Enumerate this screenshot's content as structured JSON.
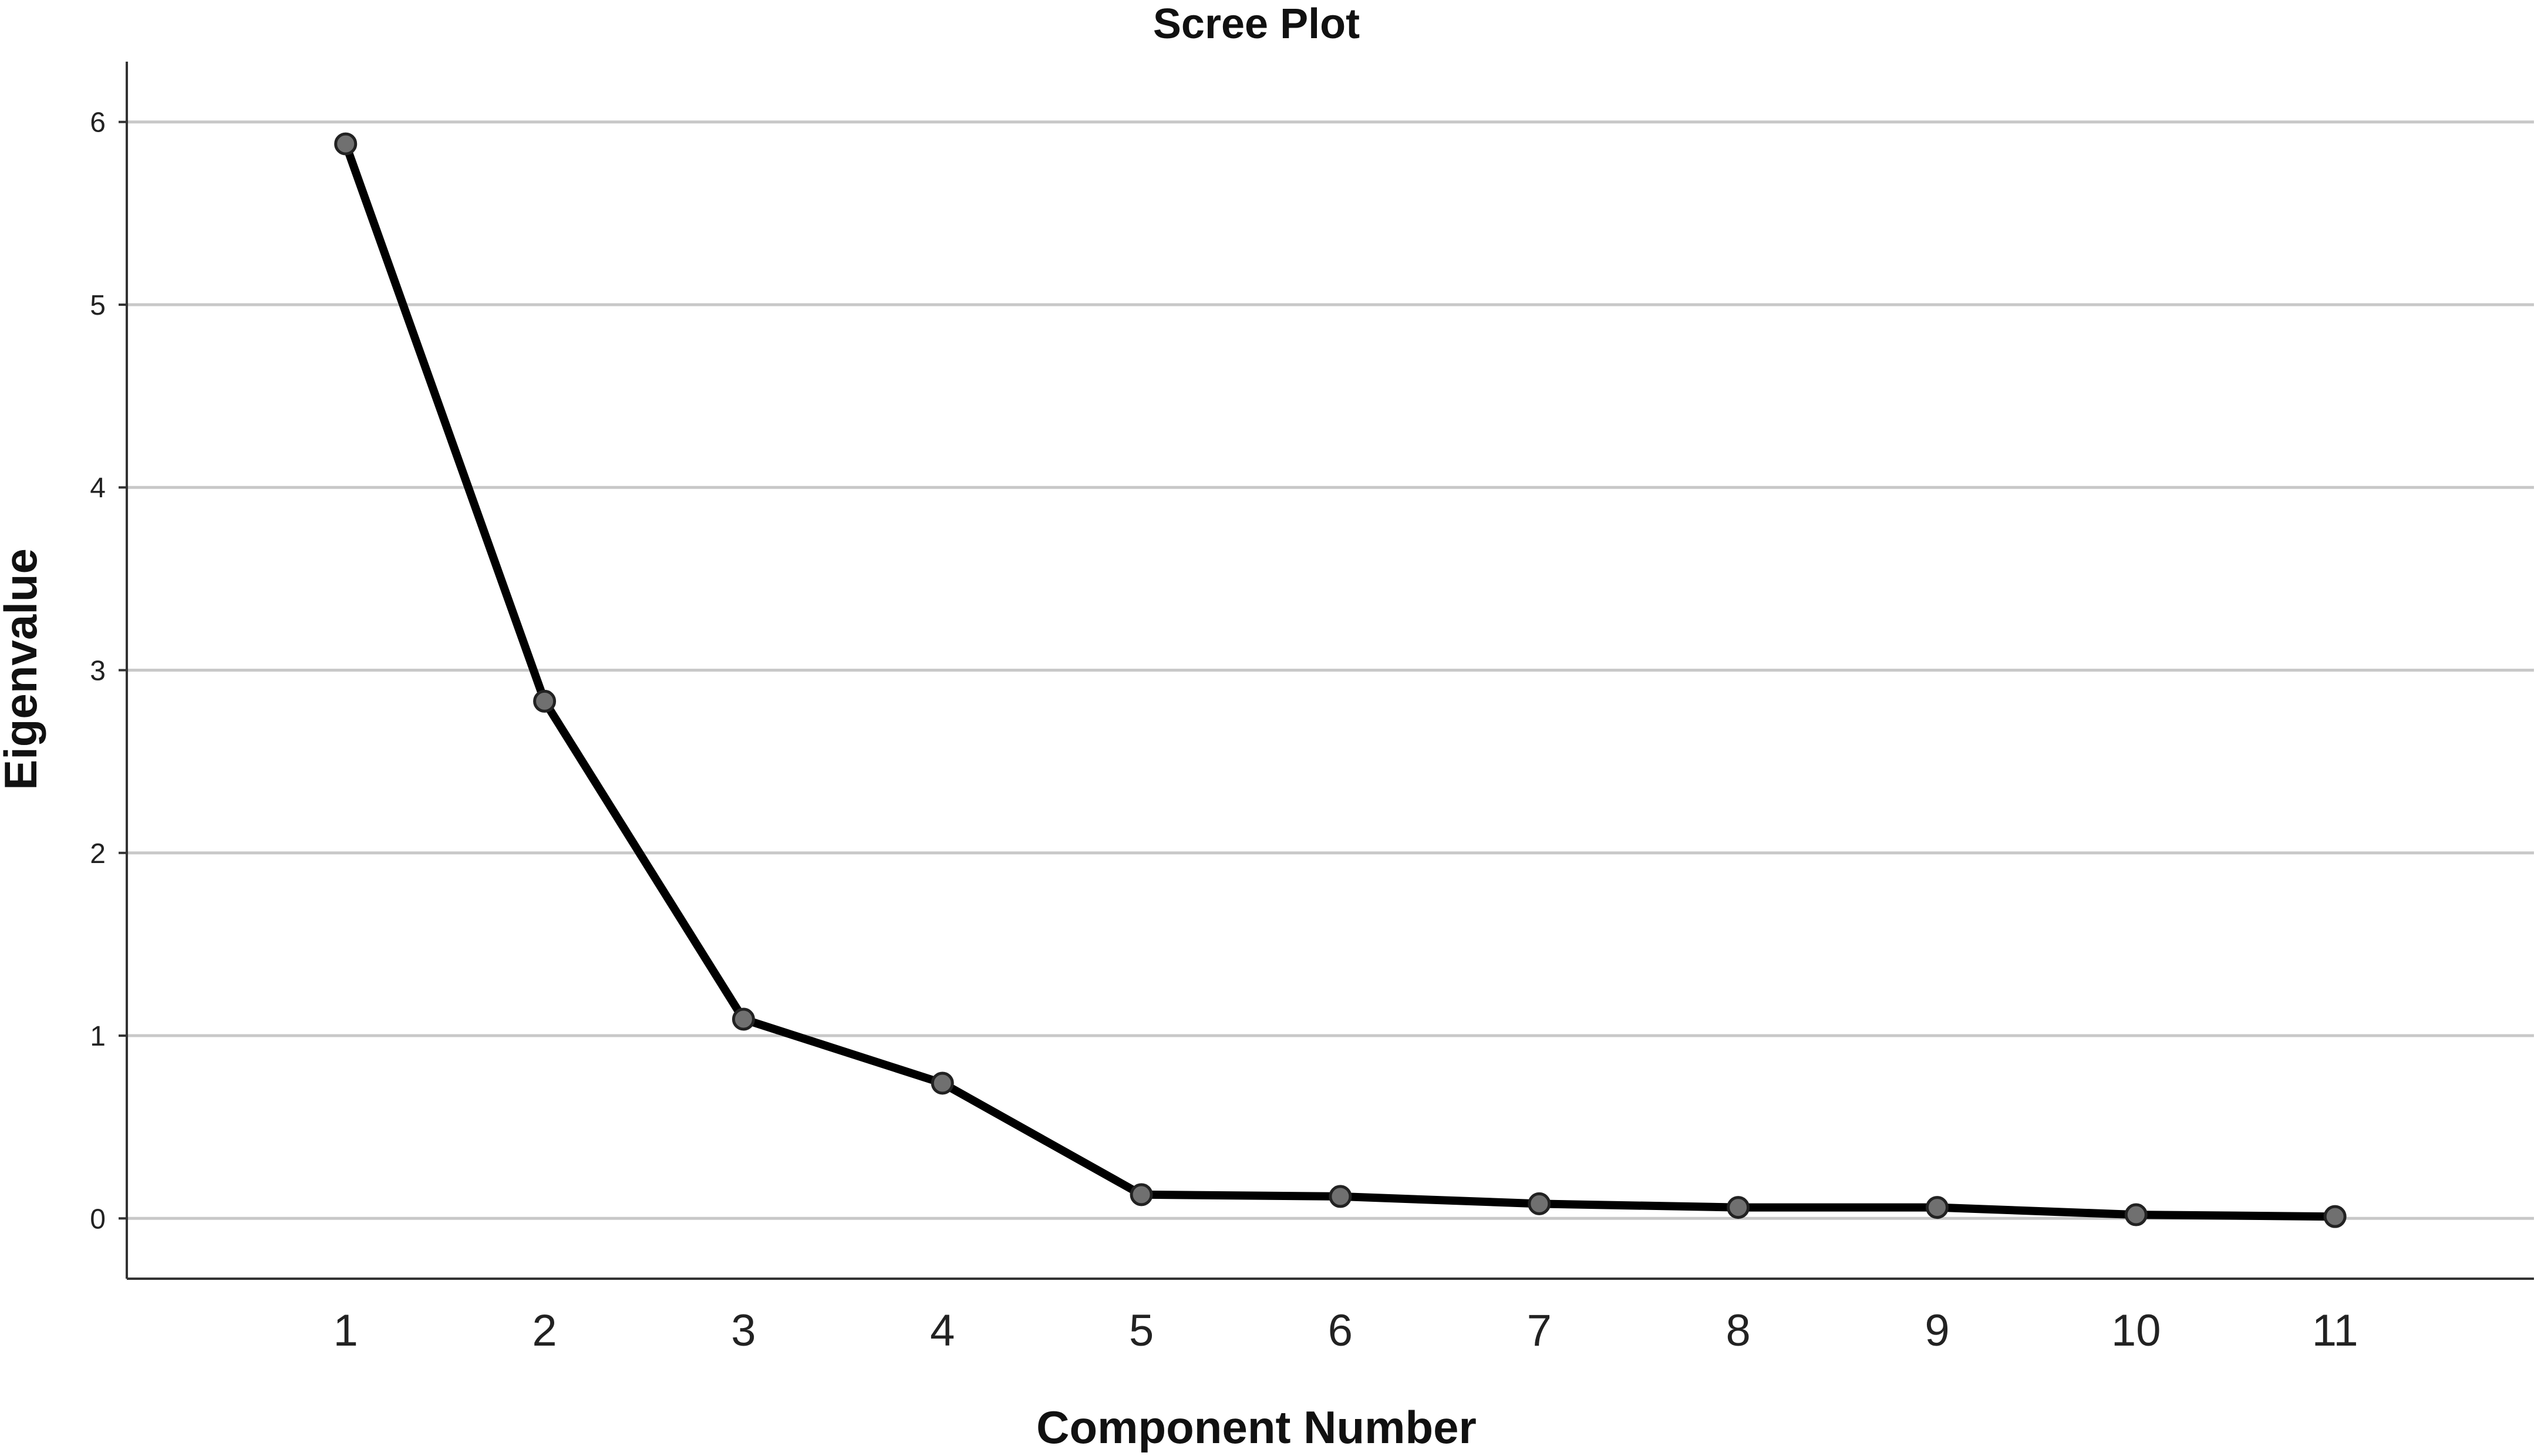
{
  "chart_data": {
    "type": "line",
    "title": "Scree Plot",
    "xlabel": "Component Number",
    "ylabel": "Eigenvalue",
    "x": [
      1,
      2,
      3,
      4,
      5,
      6,
      7,
      8,
      9,
      10,
      11
    ],
    "series": [
      {
        "values": [
          5.88,
          2.83,
          1.09,
          0.74,
          0.13,
          0.12,
          0.08,
          0.06,
          0.06,
          0.02,
          0.01
        ]
      }
    ],
    "xticks": [
      1,
      2,
      3,
      4,
      5,
      6,
      7,
      8,
      9,
      10,
      11
    ],
    "yticks": [
      0,
      1,
      2,
      3,
      4,
      5,
      6
    ],
    "xlim": [
      -0.1,
      12.0
    ],
    "ylim": [
      -0.33,
      6.33
    ],
    "grid": "horizontal",
    "line_color": "#000000",
    "marker_color": "#707070",
    "grid_color": "#c8c8c8"
  }
}
